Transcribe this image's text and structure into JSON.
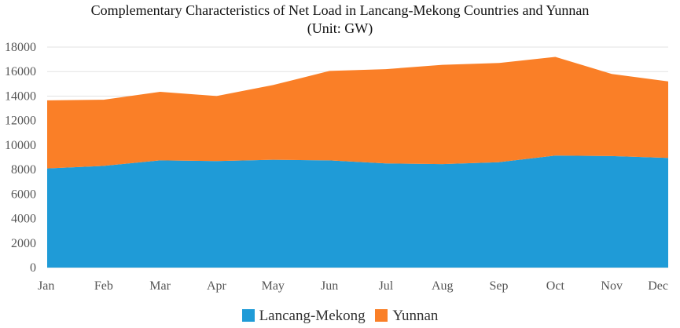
{
  "chart_data": {
    "type": "area",
    "stacked": true,
    "title": "Complementary Characteristics of Net Load in Lancang-Mekong Countries and Yunnan",
    "subtitle": "(Unit: GW)",
    "categories": [
      "Jan",
      "Feb",
      "Mar",
      "Apr",
      "May",
      "Jun",
      "Jul",
      "Aug",
      "Sep",
      "Oct",
      "Nov",
      "Dec"
    ],
    "series": [
      {
        "name": "Lancang-Mekong",
        "color": "#1f9bd7",
        "values": [
          8100,
          8300,
          8750,
          8700,
          8800,
          8750,
          8500,
          8450,
          8600,
          9150,
          9100,
          8950
        ]
      },
      {
        "name": "Yunnan",
        "color": "#fa7f27",
        "values": [
          5550,
          5400,
          5600,
          5300,
          6100,
          7300,
          7700,
          8100,
          8100,
          8050,
          6700,
          6250
        ]
      }
    ],
    "ylim": [
      0,
      18000
    ],
    "yticks": [
      0,
      2000,
      4000,
      6000,
      8000,
      10000,
      12000,
      14000,
      16000,
      18000
    ],
    "grid": true,
    "legend_position": "bottom"
  }
}
